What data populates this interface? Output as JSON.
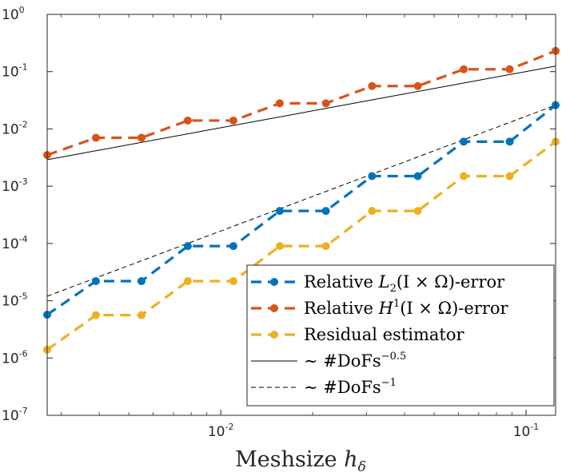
{
  "chart_data": {
    "type": "line",
    "xscale": "log",
    "yscale": "log",
    "xlim": [
      0.0027,
      0.125
    ],
    "ylim": [
      1e-07,
      1
    ],
    "xlabel": {
      "main": "Meshsize ",
      "var": "h",
      "sub": "δ"
    },
    "ylabel": "",
    "x_ticks": [
      {
        "value": 0.01,
        "base": "10",
        "exp": "-2"
      },
      {
        "value": 0.1,
        "base": "10",
        "exp": "-1"
      }
    ],
    "y_ticks": [
      {
        "value": 1e-07,
        "base": "10",
        "exp": "-7"
      },
      {
        "value": 1e-06,
        "base": "10",
        "exp": "-6"
      },
      {
        "value": 1e-05,
        "base": "10",
        "exp": "-5"
      },
      {
        "value": 0.0001,
        "base": "10",
        "exp": "-4"
      },
      {
        "value": 0.001,
        "base": "10",
        "exp": "-3"
      },
      {
        "value": 0.01,
        "base": "10",
        "exp": "-2"
      },
      {
        "value": 0.1,
        "base": "10",
        "exp": "-1"
      },
      {
        "value": 1,
        "base": "10",
        "exp": "0"
      }
    ],
    "x": [
      0.0027,
      0.0039,
      0.0055,
      0.0078,
      0.011,
      0.0156,
      0.0221,
      0.0313,
      0.0442,
      0.0625,
      0.0884,
      0.125
    ],
    "series": [
      {
        "name": "Relative L2(I × Ω)-error",
        "color": "#0072bd",
        "style": "dashed-markers",
        "legend": {
          "pre": "Relative ",
          "var": "L",
          "sub": "2",
          "post": "(I × Ω)-error"
        },
        "values": [
          5.7e-06,
          2.2e-05,
          2.2e-05,
          9e-05,
          9e-05,
          0.00037,
          0.00037,
          0.0015,
          0.0015,
          0.006,
          0.006,
          0.026
        ]
      },
      {
        "name": "Relative H1(I × Ω)-error",
        "color": "#d95319",
        "style": "dashed-markers",
        "legend": {
          "pre": "Relative ",
          "var": "H",
          "sup": "1",
          "post": "(I × Ω)-error"
        },
        "values": [
          0.0035,
          0.007,
          0.007,
          0.014,
          0.014,
          0.028,
          0.028,
          0.056,
          0.056,
          0.11,
          0.11,
          0.23
        ]
      },
      {
        "name": "Residual estimator",
        "color": "#edb120",
        "style": "dashed-markers",
        "legend": {
          "pre": "Residual estimator"
        },
        "values": [
          1.4e-06,
          5.6e-06,
          5.6e-06,
          2.2e-05,
          2.2e-05,
          9e-05,
          9e-05,
          0.00037,
          0.00037,
          0.0015,
          0.0015,
          0.006
        ]
      }
    ],
    "reference_lines": [
      {
        "name": "~ #DoFs^-0.5",
        "style": "solid",
        "color": "#000000",
        "legend": {
          "pre": "∼ #DoFs",
          "sup": "−0.5"
        },
        "x": [
          0.0027,
          0.125
        ],
        "y": [
          0.0029,
          0.125
        ]
      },
      {
        "name": "~ #DoFs^-1",
        "style": "dashed",
        "color": "#000000",
        "legend": {
          "pre": "∼ #DoFs",
          "sup": "−1"
        },
        "x": [
          0.0027,
          0.125
        ],
        "y": [
          1.2e-05,
          0.026
        ]
      }
    ],
    "legend_position": "bottom-right",
    "grid": false
  }
}
